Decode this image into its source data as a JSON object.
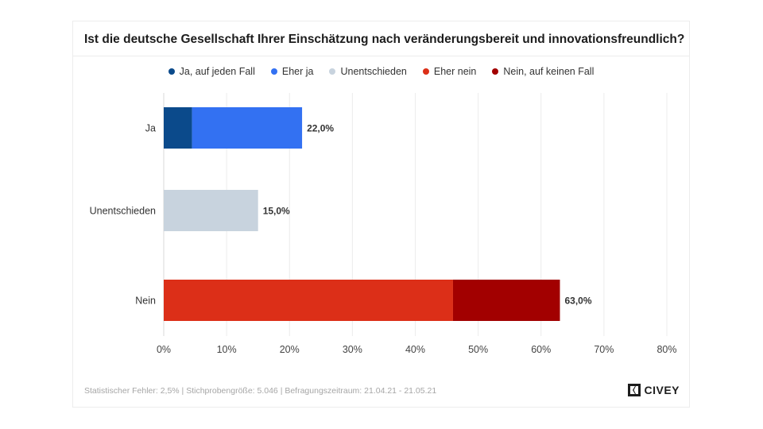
{
  "title": "Ist die deutsche Gesellschaft Ihrer Einschätzung nach veränderungsbereit und innovationsfreundlich?",
  "footer": "Statistischer Fehler: 2,5% | Stichprobengröße: 5.046 | Befragungszeitraum: 21.04.21 - 21.05.21",
  "logo": {
    "text": "CIVEY",
    "icon": "civey-logo-icon"
  },
  "legend": [
    {
      "label": "Ja, auf jeden Fall",
      "color": "#0b4a8b"
    },
    {
      "label": "Eher ja",
      "color": "#3371f2"
    },
    {
      "label": "Unentschieden",
      "color": "#c8d3de"
    },
    {
      "label": "Eher nein",
      "color": "#dc2f18"
    },
    {
      "label": "Nein, auf keinen Fall",
      "color": "#a20000"
    }
  ],
  "chart_data": {
    "type": "bar",
    "orientation": "horizontal",
    "stacked": true,
    "title": "Ist die deutsche Gesellschaft Ihrer Einschätzung nach veränderungsbereit und innovationsfreundlich?",
    "categories": [
      "Ja",
      "Unentschieden",
      "Nein"
    ],
    "series": [
      {
        "name": "Ja, auf jeden Fall",
        "color": "#0b4a8b",
        "values": [
          4.5,
          0,
          0
        ]
      },
      {
        "name": "Eher ja",
        "color": "#3371f2",
        "values": [
          17.5,
          0,
          0
        ]
      },
      {
        "name": "Unentschieden",
        "color": "#c8d3de",
        "values": [
          0,
          15.0,
          0
        ]
      },
      {
        "name": "Eher nein",
        "color": "#dc2f18",
        "values": [
          0,
          0,
          46.0
        ]
      },
      {
        "name": "Nein, auf keinen Fall",
        "color": "#a20000",
        "values": [
          0,
          0,
          17.0
        ]
      }
    ],
    "totals": [
      "22,0%",
      "15,0%",
      "63,0%"
    ],
    "xlim": [
      0,
      80
    ],
    "xticks": [
      "0%",
      "10%",
      "20%",
      "30%",
      "40%",
      "50%",
      "60%",
      "70%",
      "80%"
    ],
    "grid": true,
    "legend_position": "top"
  }
}
